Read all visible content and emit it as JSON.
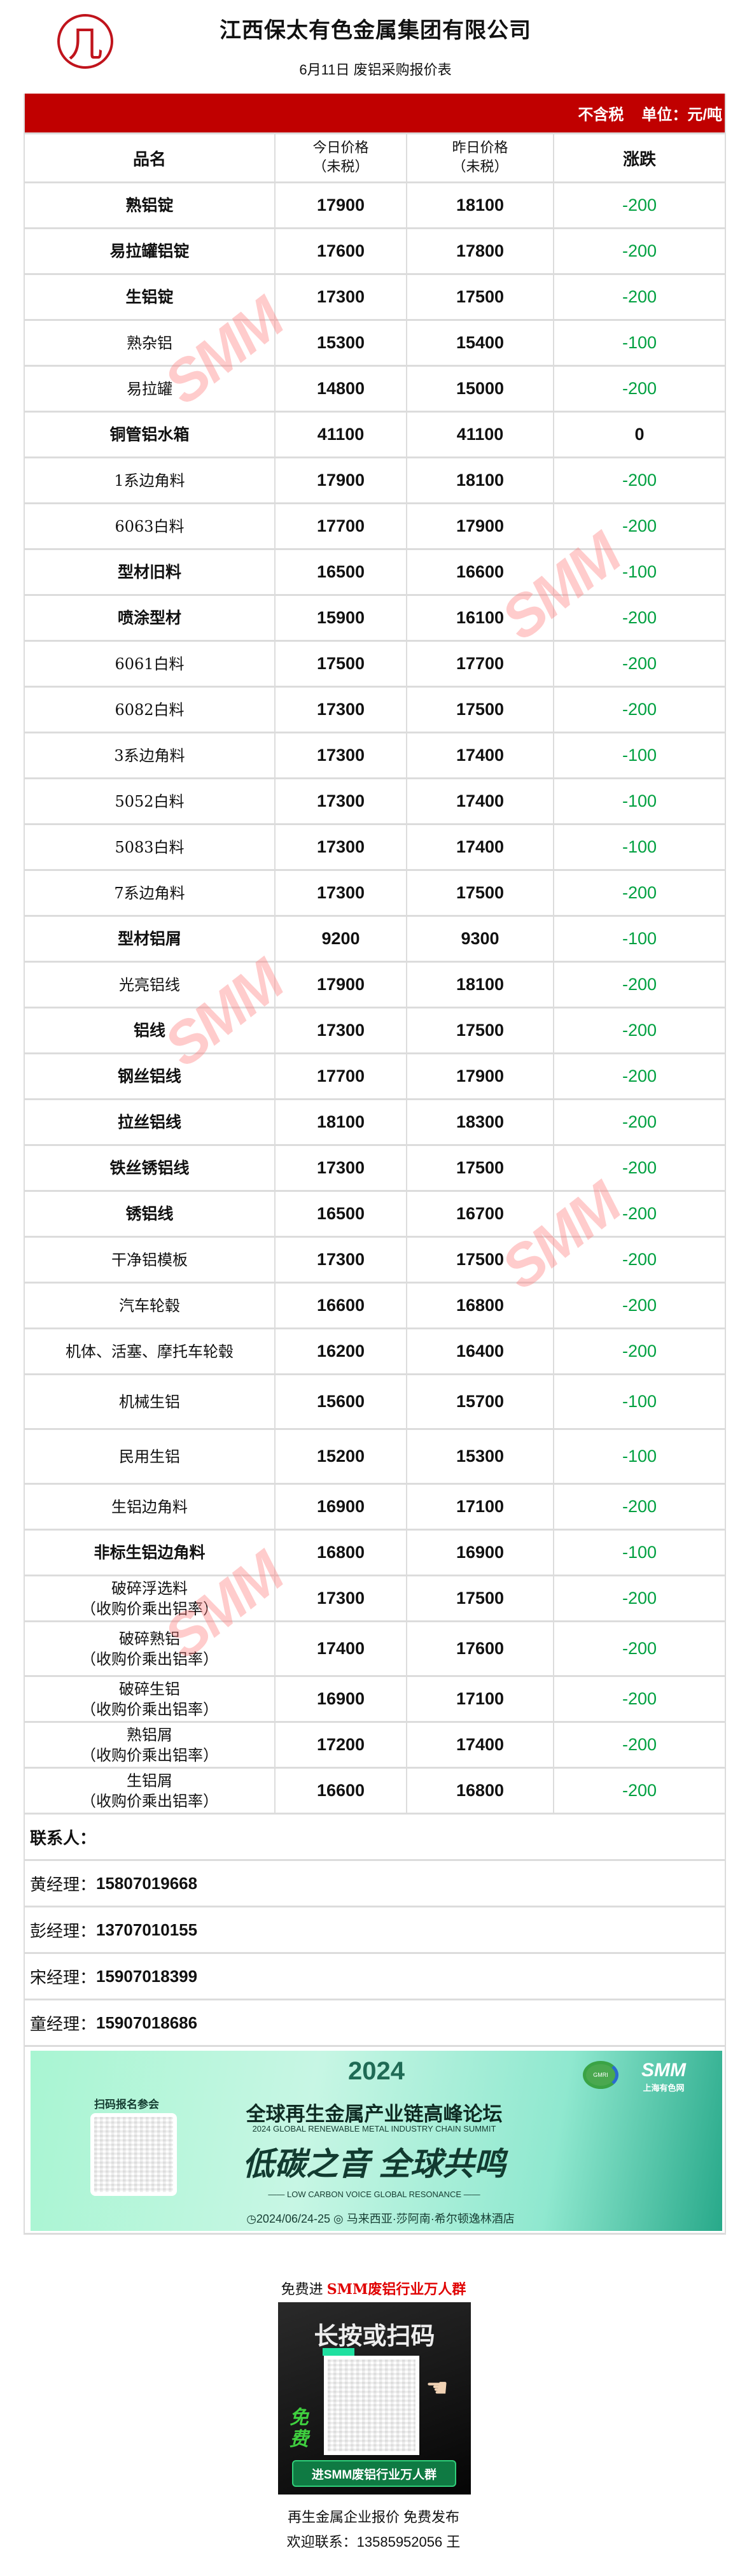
{
  "header": {
    "logo_glyph": "几",
    "title": "江西保太有色金属集团有限公司",
    "subtitle": "6月11日 废铝采购报价表"
  },
  "table": {
    "tax_note": "不含税",
    "unit": "单位：元/吨",
    "columns": {
      "name": "品名",
      "today": "今日价格",
      "today_sub": "（未税）",
      "yesterday": "昨日价格",
      "yesterday_sub": "（未税）",
      "change": "涨跌"
    },
    "rows": [
      {
        "name": "熟铝锭",
        "today": "17900",
        "yesterday": "18100",
        "change": "-200",
        "bold": true
      },
      {
        "name": "易拉罐铝锭",
        "today": "17600",
        "yesterday": "17800",
        "change": "-200",
        "bold": true
      },
      {
        "name": "生铝锭",
        "today": "17300",
        "yesterday": "17500",
        "change": "-200",
        "bold": true
      },
      {
        "name": "熟杂铝",
        "today": "15300",
        "yesterday": "15400",
        "change": "-100"
      },
      {
        "name": "易拉罐",
        "today": "14800",
        "yesterday": "15000",
        "change": "-200"
      },
      {
        "name": "铜管铝水箱",
        "today": "41100",
        "yesterday": "41100",
        "change": "0",
        "bold": true
      },
      {
        "name": "1系边角料",
        "today": "17900",
        "yesterday": "18100",
        "change": "-200"
      },
      {
        "name": "6063白料",
        "today": "17700",
        "yesterday": "17900",
        "change": "-200"
      },
      {
        "name": "型材旧料",
        "today": "16500",
        "yesterday": "16600",
        "change": "-100",
        "bold": true
      },
      {
        "name": "喷涂型材",
        "today": "15900",
        "yesterday": "16100",
        "change": "-200",
        "bold": true
      },
      {
        "name": "6061白料",
        "today": "17500",
        "yesterday": "17700",
        "change": "-200"
      },
      {
        "name": "6082白料",
        "today": "17300",
        "yesterday": "17500",
        "change": "-200"
      },
      {
        "name": "3系边角料",
        "today": "17300",
        "yesterday": "17400",
        "change": "-100"
      },
      {
        "name": "5052白料",
        "today": "17300",
        "yesterday": "17400",
        "change": "-100"
      },
      {
        "name": "5083白料",
        "today": "17300",
        "yesterday": "17400",
        "change": "-100"
      },
      {
        "name": "7系边角料",
        "today": "17300",
        "yesterday": "17500",
        "change": "-200"
      },
      {
        "name": "型材铝屑",
        "today": "9200",
        "yesterday": "9300",
        "change": "-100",
        "bold": true
      },
      {
        "name": "光亮铝线",
        "today": "17900",
        "yesterday": "18100",
        "change": "-200"
      },
      {
        "name": "铝线",
        "today": "17300",
        "yesterday": "17500",
        "change": "-200",
        "bold": true
      },
      {
        "name": "钢丝铝线",
        "today": "17700",
        "yesterday": "17900",
        "change": "-200",
        "bold": true
      },
      {
        "name": "拉丝铝线",
        "today": "18100",
        "yesterday": "18300",
        "change": "-200",
        "bold": true
      },
      {
        "name": "铁丝锈铝线",
        "today": "17300",
        "yesterday": "17500",
        "change": "-200",
        "bold": true
      },
      {
        "name": "锈铝线",
        "today": "16500",
        "yesterday": "16700",
        "change": "-200",
        "bold": true
      },
      {
        "name": "干净铝模板",
        "today": "17300",
        "yesterday": "17500",
        "change": "-200"
      },
      {
        "name": "汽车轮毂",
        "today": "16600",
        "yesterday": "16800",
        "change": "-200"
      },
      {
        "name": "机体、活塞、摩托车轮毂",
        "today": "16200",
        "yesterday": "16400",
        "change": "-200"
      },
      {
        "name": "机械生铝",
        "today": "15600",
        "yesterday": "15700",
        "change": "-100"
      },
      {
        "name": "民用生铝",
        "today": "15200",
        "yesterday": "15300",
        "change": "-100"
      },
      {
        "name": "生铝边角料",
        "today": "16900",
        "yesterday": "17100",
        "change": "-200"
      },
      {
        "name": "非标生铝边角料",
        "today": "16800",
        "yesterday": "16900",
        "change": "-100",
        "bold": true
      },
      {
        "name": "破碎浮选料",
        "sub": "（收购价乘出铝率）",
        "today": "17300",
        "yesterday": "17500",
        "change": "-200"
      },
      {
        "name": "破碎熟铝",
        "sub": "（收购价乘出铝率）",
        "today": "17400",
        "yesterday": "17600",
        "change": "-200"
      },
      {
        "name": "破碎生铝",
        "sub": "（收购价乘出铝率）",
        "today": "16900",
        "yesterday": "17100",
        "change": "-200"
      },
      {
        "name": "熟铝屑",
        "sub": "（收购价乘出铝率）",
        "today": "17200",
        "yesterday": "17400",
        "change": "-200"
      },
      {
        "name": "生铝屑",
        "sub": "（收购价乘出铝率）",
        "today": "16600",
        "yesterday": "16800",
        "change": "-200"
      }
    ]
  },
  "contacts": {
    "heading": "联系人：",
    "people": [
      {
        "label": "黄经理：",
        "phone": "15807019668"
      },
      {
        "label": "彭经理：",
        "phone": "13707010155"
      },
      {
        "label": "宋经理：",
        "phone": "15907018399"
      },
      {
        "label": "童经理：",
        "phone": "15907018686"
      }
    ]
  },
  "banner": {
    "year": "2024",
    "scan_label": "扫码报名参会",
    "title_cn": "全球再生金属产业链高峰论坛",
    "title_en": "2024 GLOBAL RENEWABLE METAL INDUSTRY CHAIN SUMMIT",
    "slogan": "低碳之音 全球共鸣",
    "slogan_en": "LOW CARBON VOICE GLOBAL RESONANCE",
    "date": "2024/06/24-25",
    "venue": "马来西亚·莎阿南·希尔顿逸林酒店",
    "gmri": "GMRI",
    "smm": "SMM",
    "smm_cn": "上海有色网"
  },
  "group": {
    "prefix": "免费进 ",
    "highlight": "SMM废铝行业万人群",
    "poster_title": "长按或扫码",
    "poster_free": "免费",
    "poster_button": "进SMM废铝行业万人群"
  },
  "footer": {
    "line1": "再生金属企业报价 免费发布",
    "line2": "欢迎联系：13585952056 王"
  },
  "watermark": "SMM",
  "colors": {
    "header_red": "#c00000",
    "down_green": "#00a040",
    "highlight_red": "#e00000"
  }
}
